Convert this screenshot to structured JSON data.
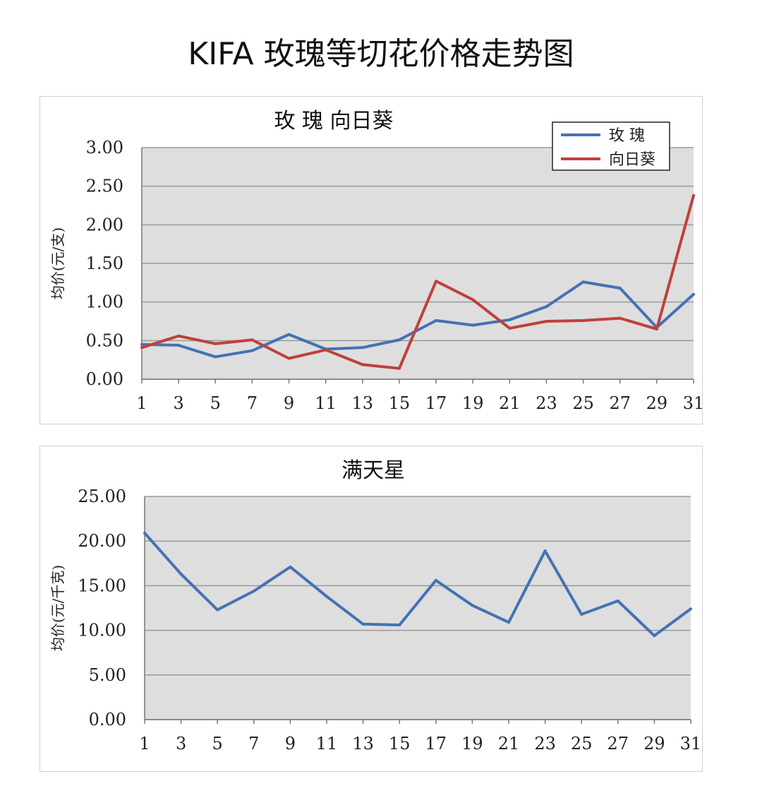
{
  "title": "KIFA 玫瑰等切花价格走势图",
  "colors": {
    "blue": "#4472b4",
    "red": "#c0403b",
    "plot_bg": "#dedede",
    "grid": "#9a9a9a"
  },
  "chart_data": [
    {
      "type": "line",
      "title": "玫  瑰    向日葵",
      "ylabel": "均价(元/支)",
      "xlabel": "",
      "ylim": [
        0,
        3
      ],
      "yticks": [
        "0.00",
        "0.50",
        "1.00",
        "1.50",
        "2.00",
        "2.50",
        "3.00"
      ],
      "xlim": [
        1,
        31
      ],
      "xticks": [
        "1",
        "3",
        "5",
        "7",
        "9",
        "11",
        "13",
        "15",
        "17",
        "19",
        "21",
        "23",
        "25",
        "27",
        "29",
        "31"
      ],
      "grid": true,
      "legend": "top-right",
      "x": [
        1,
        3,
        5,
        7,
        9,
        11,
        13,
        15,
        17,
        19,
        21,
        23,
        25,
        27,
        29,
        31
      ],
      "series": [
        {
          "name": "玫 瑰",
          "color": "#4472b4",
          "values": [
            0.45,
            0.44,
            0.29,
            0.37,
            0.58,
            0.39,
            0.41,
            0.51,
            0.76,
            0.7,
            0.77,
            0.94,
            1.26,
            1.18,
            0.67,
            1.1
          ]
        },
        {
          "name": "向日葵",
          "color": "#c0403b",
          "values": [
            0.41,
            0.56,
            0.46,
            0.51,
            0.27,
            0.38,
            0.19,
            0.14,
            1.27,
            1.03,
            0.66,
            0.75,
            0.76,
            0.79,
            0.65,
            2.38
          ]
        }
      ]
    },
    {
      "type": "line",
      "title": "满天星",
      "ylabel": "均价(元/千克)",
      "xlabel": "",
      "ylim": [
        0,
        25
      ],
      "yticks": [
        "0.00",
        "5.00",
        "10.00",
        "15.00",
        "20.00",
        "25.00"
      ],
      "xlim": [
        1,
        31
      ],
      "xticks": [
        "1",
        "3",
        "5",
        "7",
        "9",
        "11",
        "13",
        "15",
        "17",
        "19",
        "21",
        "23",
        "25",
        "27",
        "29",
        "31"
      ],
      "grid": true,
      "x": [
        1,
        3,
        5,
        7,
        9,
        11,
        13,
        15,
        17,
        19,
        21,
        23,
        25,
        27,
        29,
        31
      ],
      "series": [
        {
          "color": "#4472b4",
          "values": [
            20.9,
            16.3,
            12.3,
            14.4,
            17.1,
            13.8,
            10.7,
            10.6,
            15.6,
            12.8,
            10.9,
            18.9,
            11.8,
            13.3,
            9.4,
            12.4
          ]
        }
      ]
    }
  ]
}
